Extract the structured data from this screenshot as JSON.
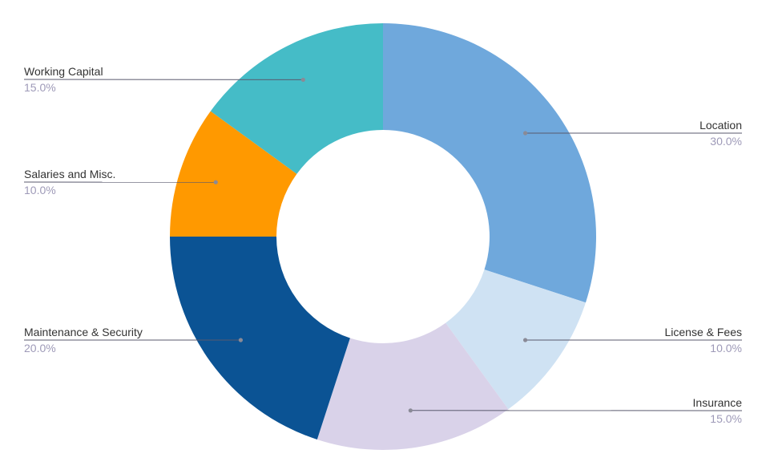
{
  "chart_data": {
    "type": "pie",
    "variant": "donut",
    "title": "",
    "slices": [
      {
        "label": "Location",
        "value": 30.0,
        "pct_label": "30.0%",
        "color": "#6fa8dc",
        "label_side": "right"
      },
      {
        "label": "License & Fees",
        "value": 10.0,
        "pct_label": "10.0%",
        "color": "#cfe2f3",
        "label_side": "right"
      },
      {
        "label": "Insurance",
        "value": 15.0,
        "pct_label": "15.0%",
        "color": "#d9d2e9",
        "label_side": "right"
      },
      {
        "label": "Maintenance & Security",
        "value": 20.0,
        "pct_label": "20.0%",
        "color": "#0b5394",
        "label_side": "left"
      },
      {
        "label": "Salaries and Misc.",
        "value": 10.0,
        "pct_label": "10.0%",
        "color": "#ff9900",
        "label_side": "left"
      },
      {
        "label": "Working Capital",
        "value": 15.0,
        "pct_label": "15.0%",
        "color": "#45bcc7",
        "label_side": "left"
      }
    ],
    "start_angle": "12 o'clock",
    "direction": "clockwise",
    "legend": "none",
    "labels": "outside with leader lines"
  }
}
